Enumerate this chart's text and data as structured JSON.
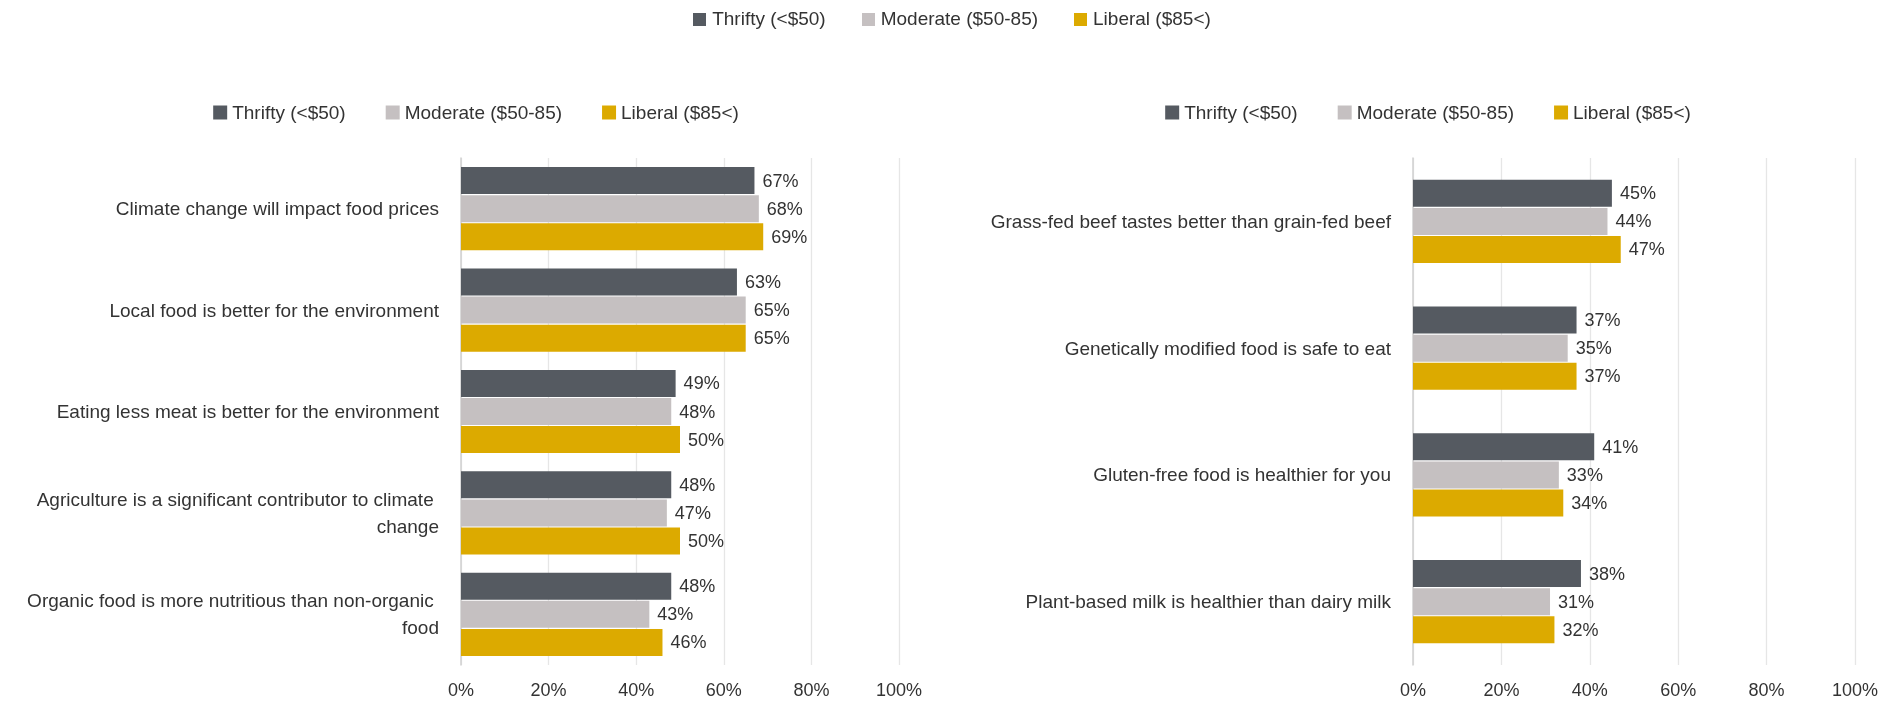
{
  "chart_data": [
    {
      "type": "bar",
      "orientation": "horizontal",
      "categories": [
        "Climate change will impact food prices",
        "Local food is better for the environment",
        "Eating less meat is better for the environment",
        "Agriculture is a significant contributor to climate change",
        "Organic food is more nutritious than non-organic food"
      ],
      "series": [
        {
          "name": "Thrifty (<$50)",
          "color": "#555a61",
          "values": [
            67,
            63,
            49,
            48,
            48
          ],
          "value_labels": [
            "67%",
            "63%",
            "49%",
            "48%",
            "48%"
          ]
        },
        {
          "name": "Moderate ($50-85)",
          "color": "#c5c0c1",
          "values": [
            68,
            65,
            48,
            47,
            43
          ],
          "value_labels": [
            "68%",
            "65%",
            "48%",
            "47%",
            "43%"
          ]
        },
        {
          "name": "Liberal ($85<)",
          "color": "#dcaa00",
          "values": [
            69,
            65,
            50,
            50,
            46
          ],
          "value_labels": [
            "69%",
            "65%",
            "50%",
            "50%",
            "46%"
          ]
        }
      ],
      "xlim": [
        0,
        100
      ],
      "xticks": [
        {
          "value": 0,
          "label": "0%"
        },
        {
          "value": 20,
          "label": "20%"
        },
        {
          "value": 40,
          "label": "40%"
        },
        {
          "value": 60,
          "label": "60%"
        },
        {
          "value": 80,
          "label": "80%"
        },
        {
          "value": 100,
          "label": "100%"
        }
      ],
      "grid": "x",
      "legend": "top"
    },
    {
      "type": "bar",
      "orientation": "horizontal",
      "categories": [
        "Grass-fed beef tastes better than grain-fed beef",
        "Genetically modified food is safe to eat",
        "Gluten-free food is healthier for you",
        "Plant-based milk is healthier than dairy milk"
      ],
      "series": [
        {
          "name": "Thrifty (<$50)",
          "color": "#555a61",
          "values": [
            45,
            37,
            41,
            38
          ],
          "value_labels": [
            "45%",
            "37%",
            "41%",
            "38%"
          ]
        },
        {
          "name": "Moderate ($50-85)",
          "color": "#c5c0c1",
          "values": [
            44,
            35,
            33,
            31
          ],
          "value_labels": [
            "44%",
            "35%",
            "33%",
            "31%"
          ]
        },
        {
          "name": "Liberal ($85<)",
          "color": "#dcaa00",
          "values": [
            47,
            37,
            34,
            32
          ],
          "value_labels": [
            "47%",
            "37%",
            "34%",
            "32%"
          ]
        }
      ],
      "xlim": [
        0,
        100
      ],
      "xticks": [
        {
          "value": 0,
          "label": "0%"
        },
        {
          "value": 20,
          "label": "20%"
        },
        {
          "value": 40,
          "label": "40%"
        },
        {
          "value": 60,
          "label": "60%"
        },
        {
          "value": 80,
          "label": "80%"
        },
        {
          "value": 100,
          "label": "100%"
        }
      ],
      "grid": "x",
      "legend": "top"
    }
  ]
}
